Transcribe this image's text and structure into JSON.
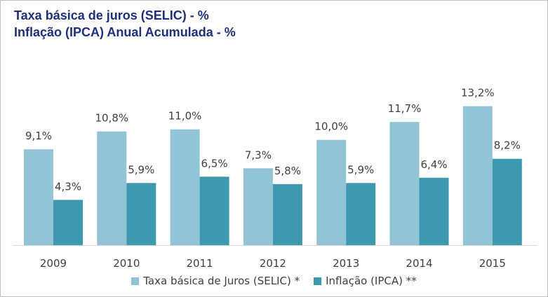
{
  "chart_data": {
    "type": "bar",
    "title": "Taxa básica de juros (SELIC) - %",
    "subtitle": "Inflação (IPCA) Anual Acumulada - %",
    "categories": [
      "2009",
      "2010",
      "2011",
      "2012",
      "2013",
      "2014",
      "2015"
    ],
    "series": [
      {
        "name": "Taxa básica de Juros (SELIC) *",
        "values": [
          9.1,
          10.8,
          11.0,
          7.3,
          10.0,
          11.7,
          13.2
        ],
        "labels": [
          "9,1%",
          "10,8%",
          "11,0%",
          "7,3%",
          "10,0%",
          "11,7%",
          "13,2%"
        ],
        "color": "#93c4d6"
      },
      {
        "name": "Inflação (IPCA) **",
        "values": [
          4.3,
          5.9,
          6.5,
          5.8,
          5.9,
          6.4,
          8.2
        ],
        "labels": [
          "4,3%",
          "5,9%",
          "6,5%",
          "5,8%",
          "5,9%",
          "6,4%",
          "8,2%"
        ],
        "color": "#3d99ad"
      }
    ],
    "ylim": [
      0,
      15.5
    ],
    "grid": false,
    "legend_position": "bottom"
  }
}
